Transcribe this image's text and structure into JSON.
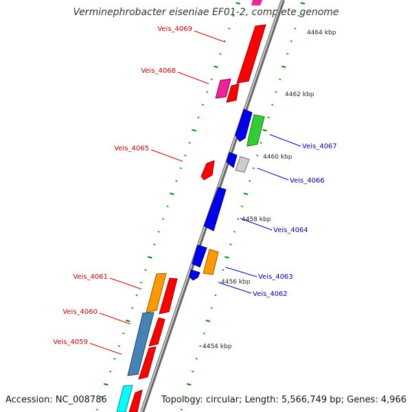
{
  "title": "Verminephrobacter eiseniae EF01-2, complete genome",
  "footer": {
    "accession": "Accession: NC_008786",
    "summary": "Topology: circular; Length: 5,566,749 bp; Genes: 4,966"
  },
  "scale_labels": [
    "4464 kbp",
    "4462 kbp",
    "4460 kbp",
    "4458 kbp",
    "4456 kbp",
    "4454 kbp"
  ],
  "gene_labels_left": [
    "Veis_4069",
    "Veis_4068",
    "Veis_4065",
    "Veis_4061",
    "Veis_4060",
    "Veis_4059"
  ],
  "gene_labels_right": [
    "Veis_4067",
    "Veis_4066",
    "Veis_4064",
    "Veis_4063",
    "Veis_4062"
  ],
  "colors": {
    "red": "#ff0000",
    "blue": "#0000ee",
    "green": "#33cc33",
    "magenta": "#ee2299",
    "orange": "#ff9900",
    "steelblue": "#4682b4",
    "cyan": "#00ffff",
    "grey": "#cccccc",
    "pink": "#ffbbcc",
    "tick": "#008800",
    "backbone": "#888888"
  }
}
